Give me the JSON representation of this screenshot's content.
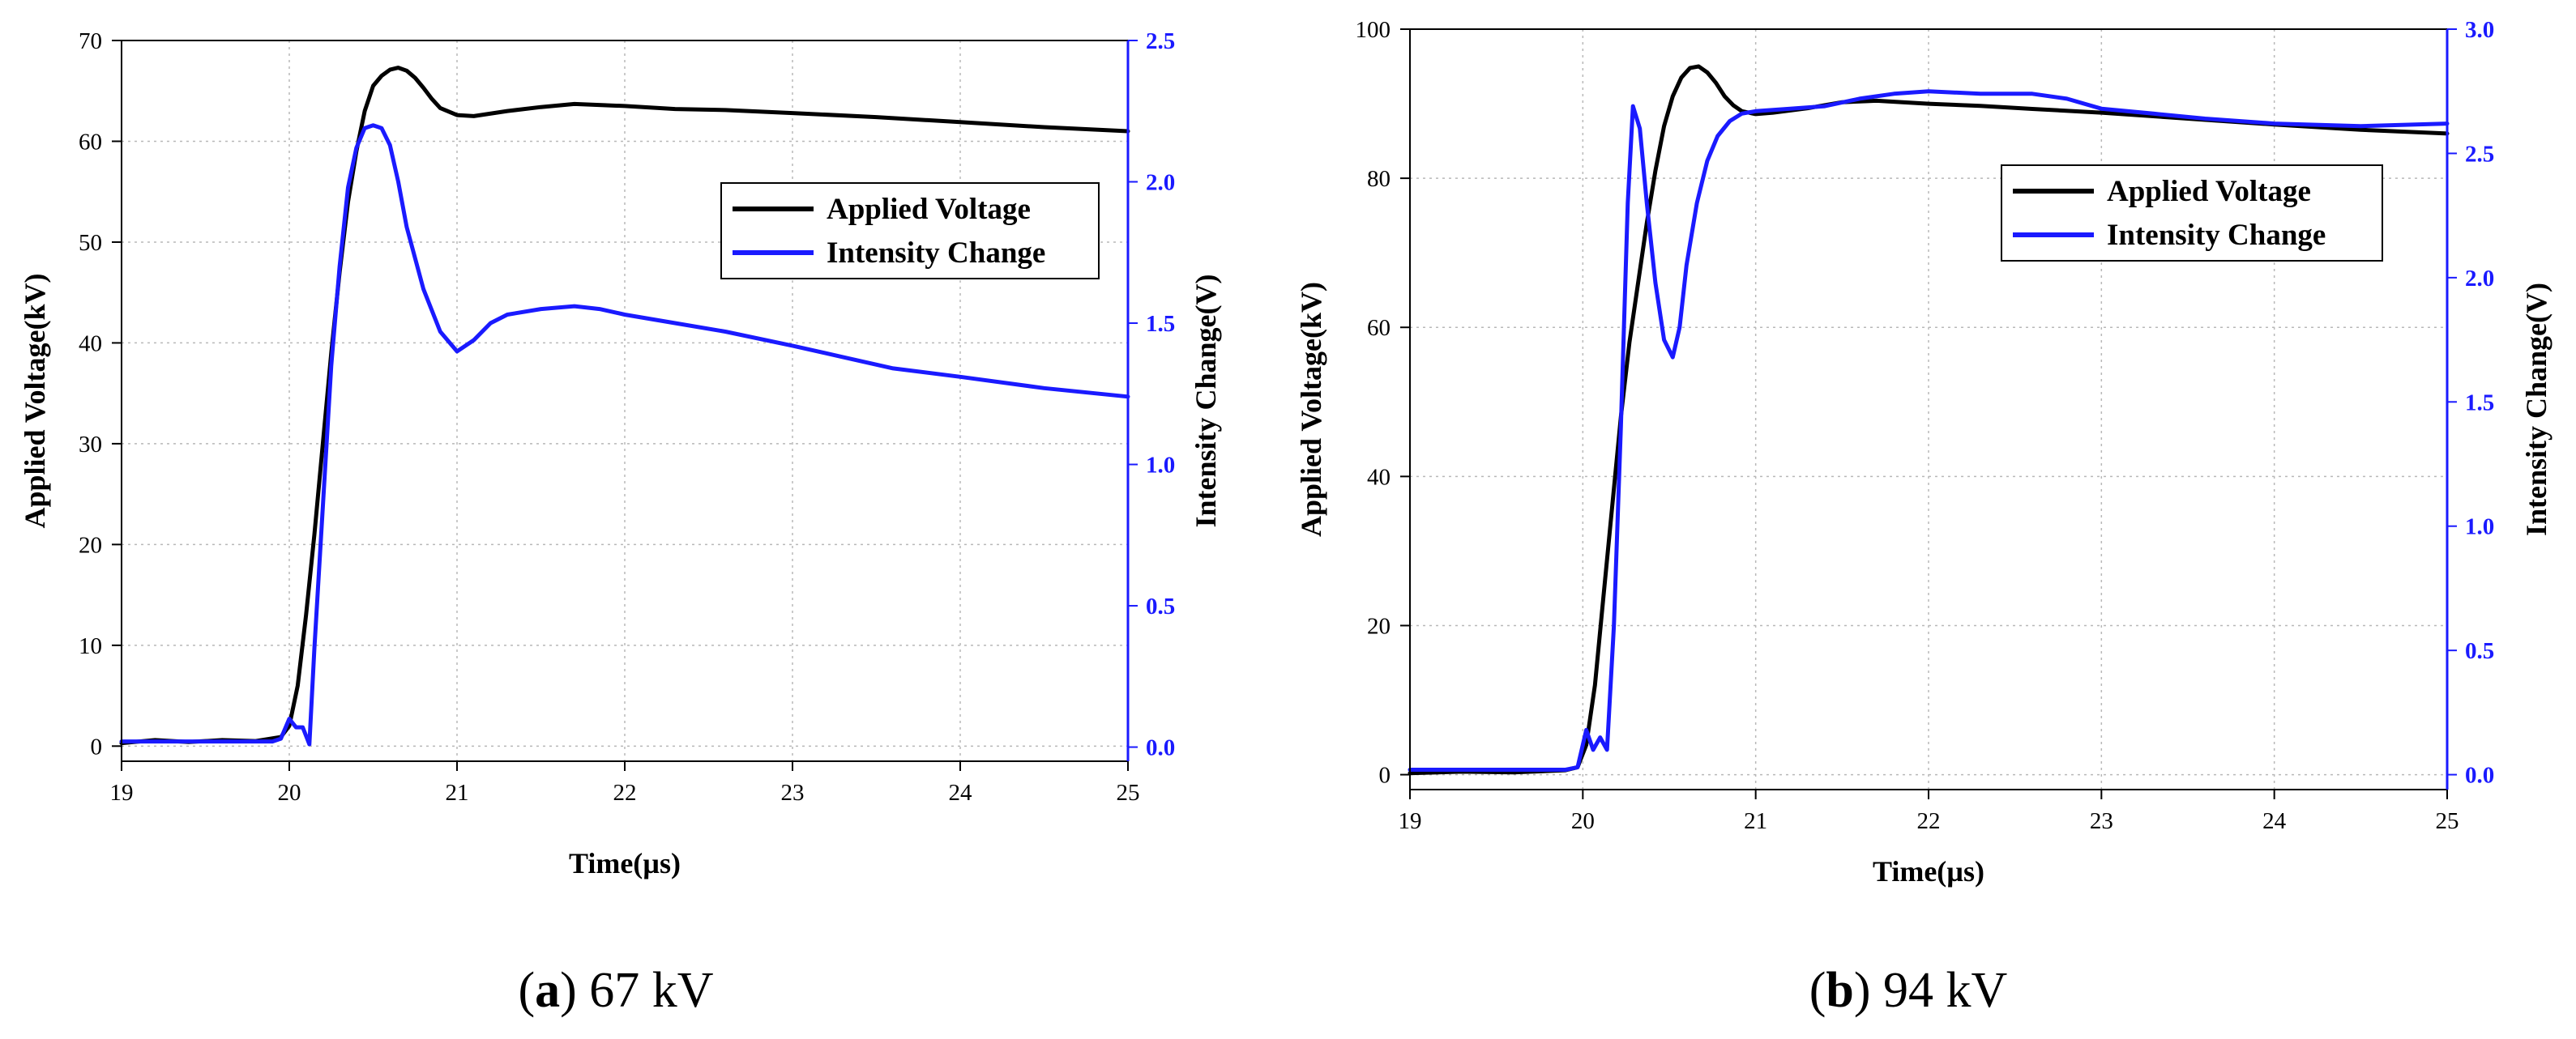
{
  "chart_data": [
    {
      "type": "line",
      "caption_letter": "a",
      "caption_text": "67 kV",
      "xlabel": "Time(µs)",
      "ylabel_left": "Applied Voltage(kV)",
      "ylabel_right": "Intensity Change(V)",
      "xlim": [
        19,
        25
      ],
      "ylim_left": [
        -1.5,
        70
      ],
      "ylim_right": [
        -0.05,
        2.5
      ],
      "xticks": [
        "19",
        "20",
        "21",
        "22",
        "23",
        "24",
        "25"
      ],
      "yticks_left": [
        "0",
        "10",
        "20",
        "30",
        "40",
        "50",
        "60",
        "70"
      ],
      "yticks_right": [
        "0.0",
        "0.5",
        "1.0",
        "1.5",
        "2.0",
        "2.5"
      ],
      "grid": true,
      "legend_position": "upper-right",
      "series": [
        {
          "name": "Applied Voltage",
          "axis": "left",
          "color": "#000000",
          "x": [
            19,
            19.2,
            19.4,
            19.6,
            19.8,
            19.95,
            20.0,
            20.05,
            20.1,
            20.15,
            20.2,
            20.25,
            20.3,
            20.35,
            20.4,
            20.45,
            20.5,
            20.55,
            20.6,
            20.65,
            20.7,
            20.75,
            20.8,
            20.85,
            20.9,
            21.0,
            21.1,
            21.3,
            21.5,
            21.7,
            22.0,
            22.3,
            22.6,
            23.0,
            23.5,
            24.0,
            24.5,
            25.0
          ],
          "y": [
            0.3,
            0.6,
            0.4,
            0.6,
            0.5,
            0.9,
            2,
            6,
            13,
            21,
            30,
            39,
            47,
            54,
            59,
            63,
            65.5,
            66.5,
            67.1,
            67.3,
            67.0,
            66.3,
            65.3,
            64.2,
            63.3,
            62.6,
            62.5,
            63.0,
            63.4,
            63.7,
            63.5,
            63.2,
            63.1,
            62.8,
            62.4,
            61.9,
            61.4,
            61.0
          ]
        },
        {
          "name": "Intensity Change",
          "axis": "right",
          "color": "#1a1aff",
          "x": [
            19,
            19.3,
            19.6,
            19.9,
            19.95,
            20.0,
            20.04,
            20.08,
            20.12,
            20.15,
            20.2,
            20.25,
            20.3,
            20.35,
            20.4,
            20.45,
            20.5,
            20.55,
            20.6,
            20.65,
            20.7,
            20.8,
            20.9,
            21.0,
            21.1,
            21.2,
            21.3,
            21.5,
            21.7,
            21.85,
            22.0,
            22.3,
            22.6,
            23.0,
            23.3,
            23.6,
            24.0,
            24.5,
            25.0
          ],
          "y": [
            0.02,
            0.02,
            0.02,
            0.02,
            0.03,
            0.1,
            0.07,
            0.07,
            0.01,
            0.35,
            0.85,
            1.35,
            1.7,
            1.98,
            2.12,
            2.19,
            2.2,
            2.19,
            2.13,
            2.0,
            1.84,
            1.62,
            1.47,
            1.4,
            1.44,
            1.5,
            1.53,
            1.55,
            1.56,
            1.55,
            1.53,
            1.5,
            1.47,
            1.42,
            1.38,
            1.34,
            1.31,
            1.27,
            1.24
          ]
        }
      ]
    },
    {
      "type": "line",
      "caption_letter": "b",
      "caption_text": "94 kV",
      "xlabel": "Time(µs)",
      "ylabel_left": "Applied Voltage(kV)",
      "ylabel_right": "Intensity Change(V)",
      "xlim": [
        19,
        25
      ],
      "ylim_left": [
        -2,
        100
      ],
      "ylim_right": [
        -0.06,
        3.0
      ],
      "xticks": [
        "19",
        "20",
        "21",
        "22",
        "23",
        "24",
        "25"
      ],
      "yticks_left": [
        "0",
        "20",
        "40",
        "60",
        "80",
        "100"
      ],
      "yticks_right": [
        "0.0",
        "0.5",
        "1.0",
        "1.5",
        "2.0",
        "2.5",
        "3.0"
      ],
      "grid": true,
      "legend_position": "upper-right",
      "series": [
        {
          "name": "Applied Voltage",
          "axis": "left",
          "color": "#000000",
          "x": [
            19,
            19.3,
            19.6,
            19.9,
            19.97,
            20.02,
            20.07,
            20.12,
            20.17,
            20.22,
            20.27,
            20.32,
            20.37,
            20.42,
            20.47,
            20.52,
            20.57,
            20.62,
            20.67,
            20.72,
            20.77,
            20.82,
            20.87,
            20.92,
            21.0,
            21.1,
            21.3,
            21.5,
            21.7,
            22.0,
            22.3,
            22.6,
            23.0,
            23.5,
            24.0,
            24.5,
            25.0
          ],
          "y": [
            0.2,
            0.4,
            0.3,
            0.6,
            1.0,
            4,
            12,
            24,
            36,
            48,
            58,
            66,
            74,
            81,
            87,
            91,
            93.5,
            94.8,
            95.0,
            94.2,
            92.8,
            91.0,
            89.8,
            89.0,
            88.6,
            88.8,
            89.4,
            90.2,
            90.4,
            90.0,
            89.7,
            89.3,
            88.8,
            88.0,
            87.2,
            86.5,
            86.0
          ]
        },
        {
          "name": "Intensity Change",
          "axis": "right",
          "color": "#1a1aff",
          "x": [
            19,
            19.3,
            19.6,
            19.9,
            19.97,
            20.02,
            20.06,
            20.1,
            20.14,
            20.18,
            20.22,
            20.26,
            20.29,
            20.33,
            20.37,
            20.42,
            20.47,
            20.52,
            20.56,
            20.6,
            20.66,
            20.72,
            20.78,
            20.85,
            20.92,
            21.0,
            21.2,
            21.4,
            21.6,
            21.8,
            22.0,
            22.3,
            22.6,
            22.8,
            23.0,
            23.3,
            23.6,
            24.0,
            24.5,
            25.0
          ],
          "y": [
            0.02,
            0.02,
            0.02,
            0.02,
            0.03,
            0.18,
            0.1,
            0.15,
            0.1,
            0.6,
            1.4,
            2.3,
            2.69,
            2.6,
            2.3,
            1.98,
            1.75,
            1.68,
            1.8,
            2.05,
            2.3,
            2.47,
            2.57,
            2.63,
            2.66,
            2.67,
            2.68,
            2.69,
            2.72,
            2.74,
            2.75,
            2.74,
            2.74,
            2.72,
            2.68,
            2.66,
            2.64,
            2.62,
            2.61,
            2.62
          ]
        }
      ]
    }
  ]
}
